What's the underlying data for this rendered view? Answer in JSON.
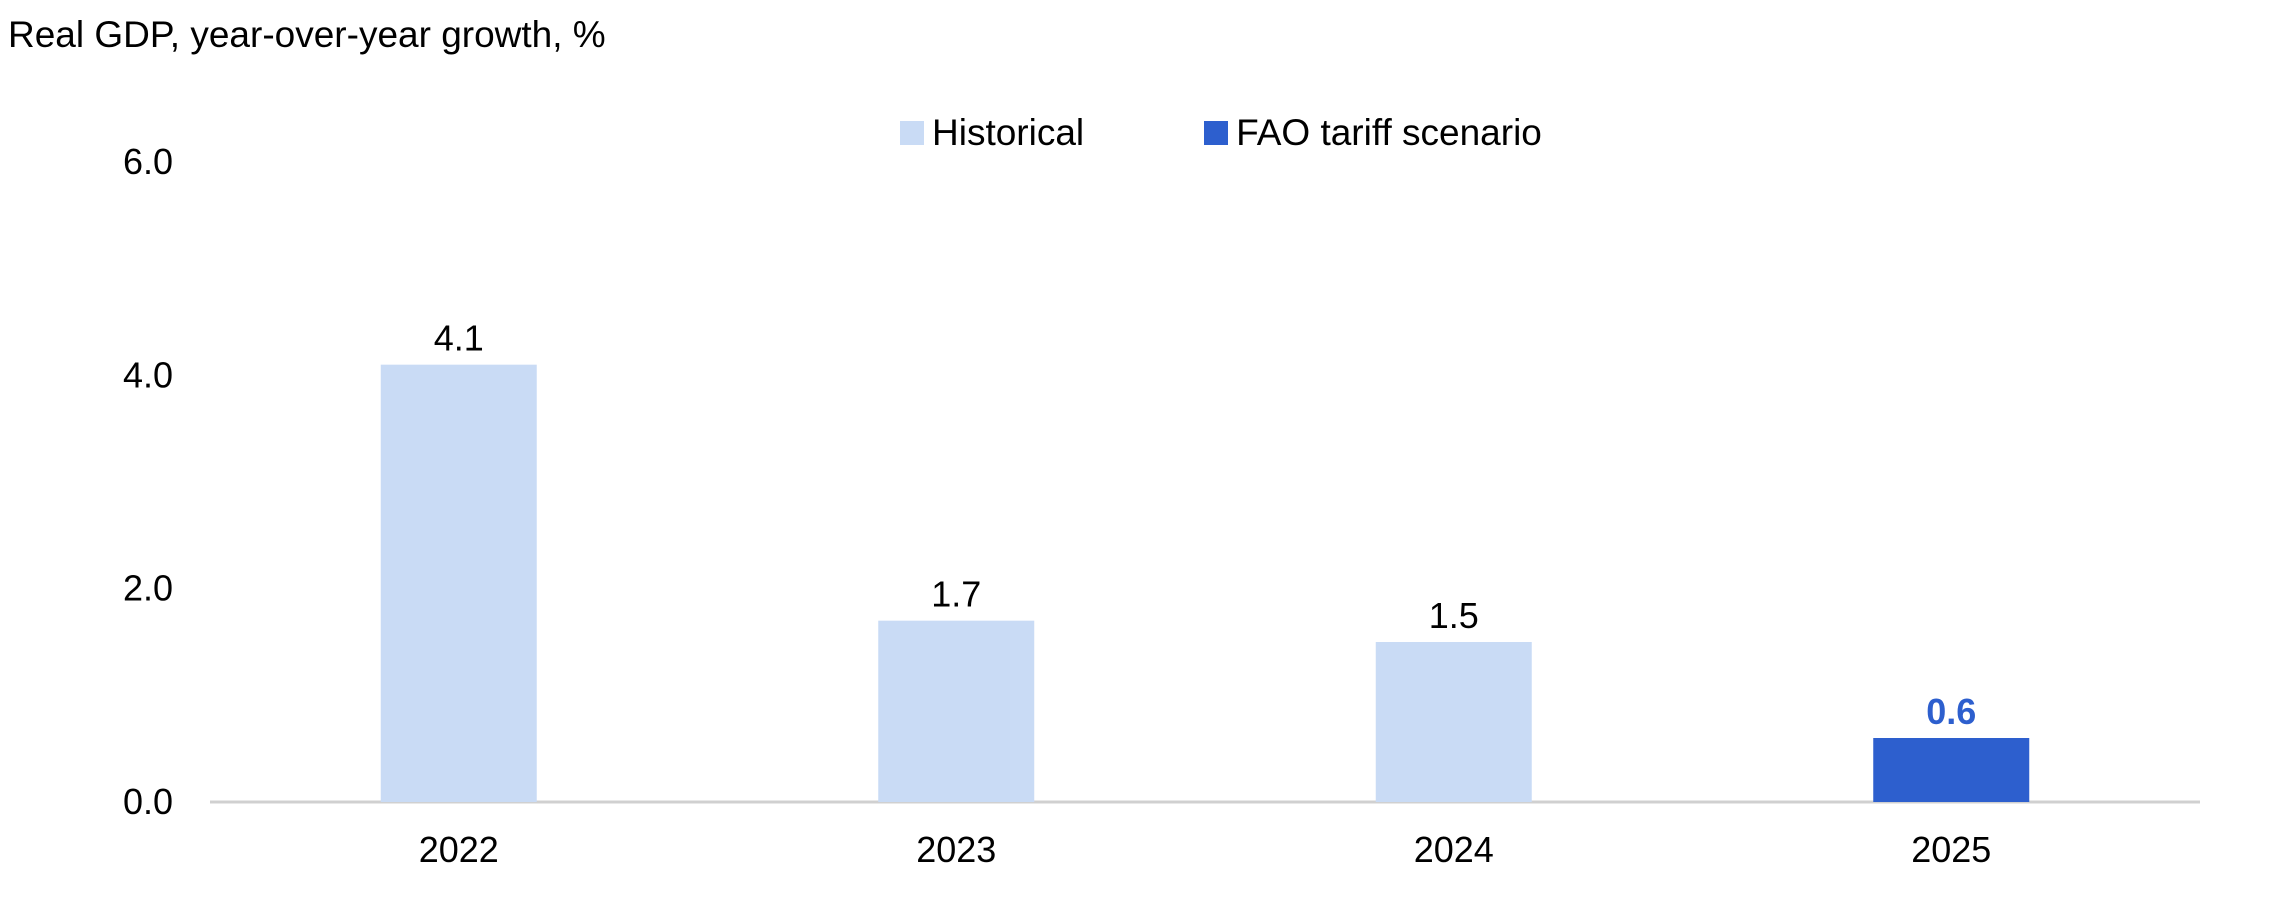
{
  "chart_data": {
    "type": "bar",
    "title": "Real GDP, year-over-year growth, %",
    "categories": [
      "2022",
      "2023",
      "2024",
      "2025"
    ],
    "values": [
      4.1,
      1.7,
      1.5,
      0.6
    ],
    "value_labels": [
      "4.1",
      "1.7",
      "1.5",
      "0.6"
    ],
    "series_assignment": [
      "Historical",
      "Historical",
      "Historical",
      "FAO tariff scenario"
    ],
    "legend": [
      {
        "name": "Historical",
        "color": "#c9dbf5"
      },
      {
        "name": "FAO tariff scenario",
        "color": "#2d5fce"
      }
    ],
    "ylim": [
      0,
      6
    ],
    "yticks": [
      0,
      2,
      4,
      6
    ],
    "ytick_labels": [
      "0.0",
      "2.0",
      "4.0",
      "6.0"
    ],
    "grid": false,
    "legend_position": "top-center",
    "colors": {
      "historical": "#c9dbf5",
      "scenario": "#2d5fce",
      "scenario_label": "#2d5fce",
      "axis": "#d0d0d0"
    }
  }
}
